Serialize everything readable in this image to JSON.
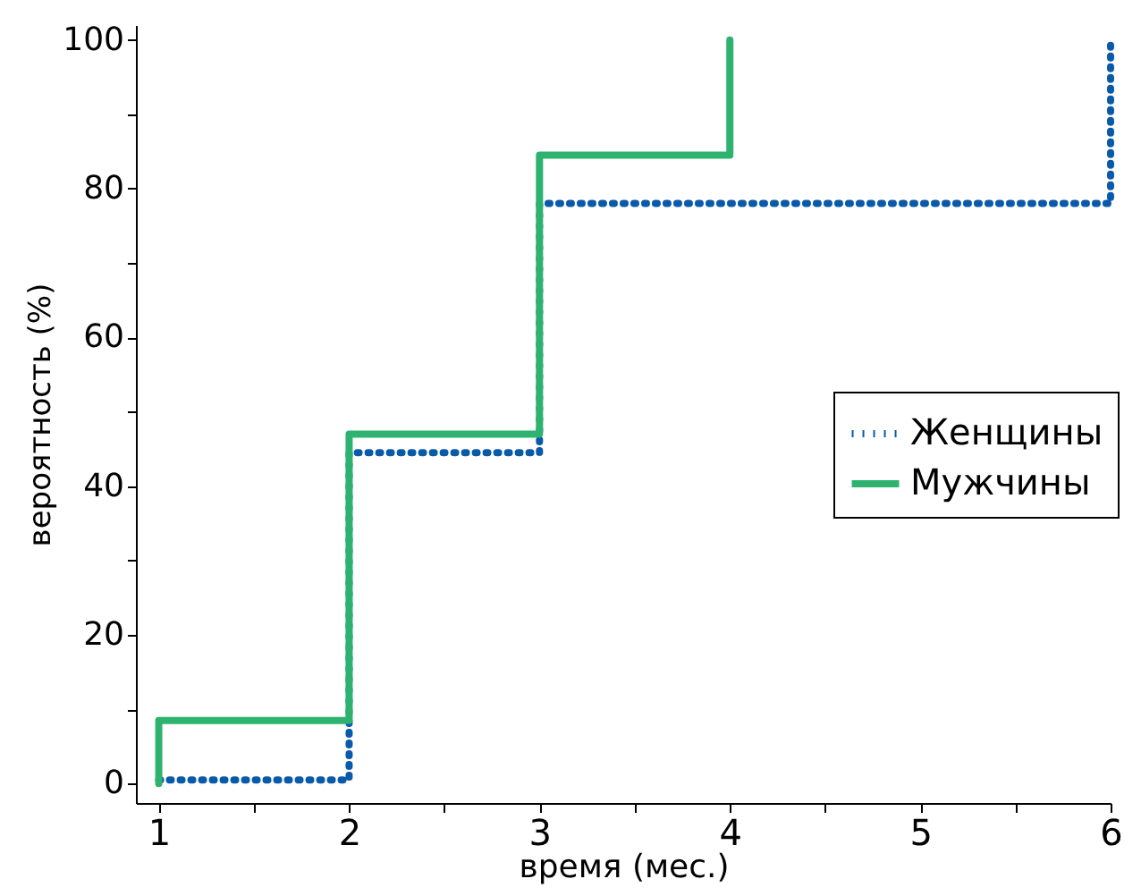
{
  "chart_data": {
    "type": "step",
    "xlabel": "время (мес.)",
    "ylabel": "вероятность (%)",
    "xlim": [
      0.88,
      6
    ],
    "ylim": [
      -2.6,
      102
    ],
    "xticks": [
      1,
      {
        "value": 1.5,
        "label": null
      },
      2,
      {
        "value": 2.5,
        "label": null
      },
      3,
      {
        "value": 3.5,
        "label": null
      },
      4,
      {
        "value": 4.5,
        "label": null
      },
      5,
      {
        "value": 5.5,
        "label": null
      },
      6
    ],
    "yticks": [
      0,
      {
        "value": 10,
        "label": null
      },
      20,
      {
        "value": 30,
        "label": null
      },
      40,
      {
        "value": 50,
        "label": null
      },
      60,
      {
        "value": 70,
        "label": null
      },
      80,
      {
        "value": 90,
        "label": null
      },
      100
    ],
    "grid": false,
    "legend": "right",
    "marker": "none",
    "series": [
      {
        "name": "Женщины",
        "color": "#0a5aaa",
        "line_style": "dotted",
        "x": [
          1,
          2,
          3,
          6
        ],
        "values": [
          0.5,
          44.5,
          78,
          100
        ]
      },
      {
        "name": "Мужчины",
        "color": "#2db36f",
        "line_style": "solid",
        "x": [
          1,
          1,
          2,
          3,
          4
        ],
        "values": [
          0,
          8.5,
          47,
          84.5,
          100
        ]
      }
    ]
  }
}
